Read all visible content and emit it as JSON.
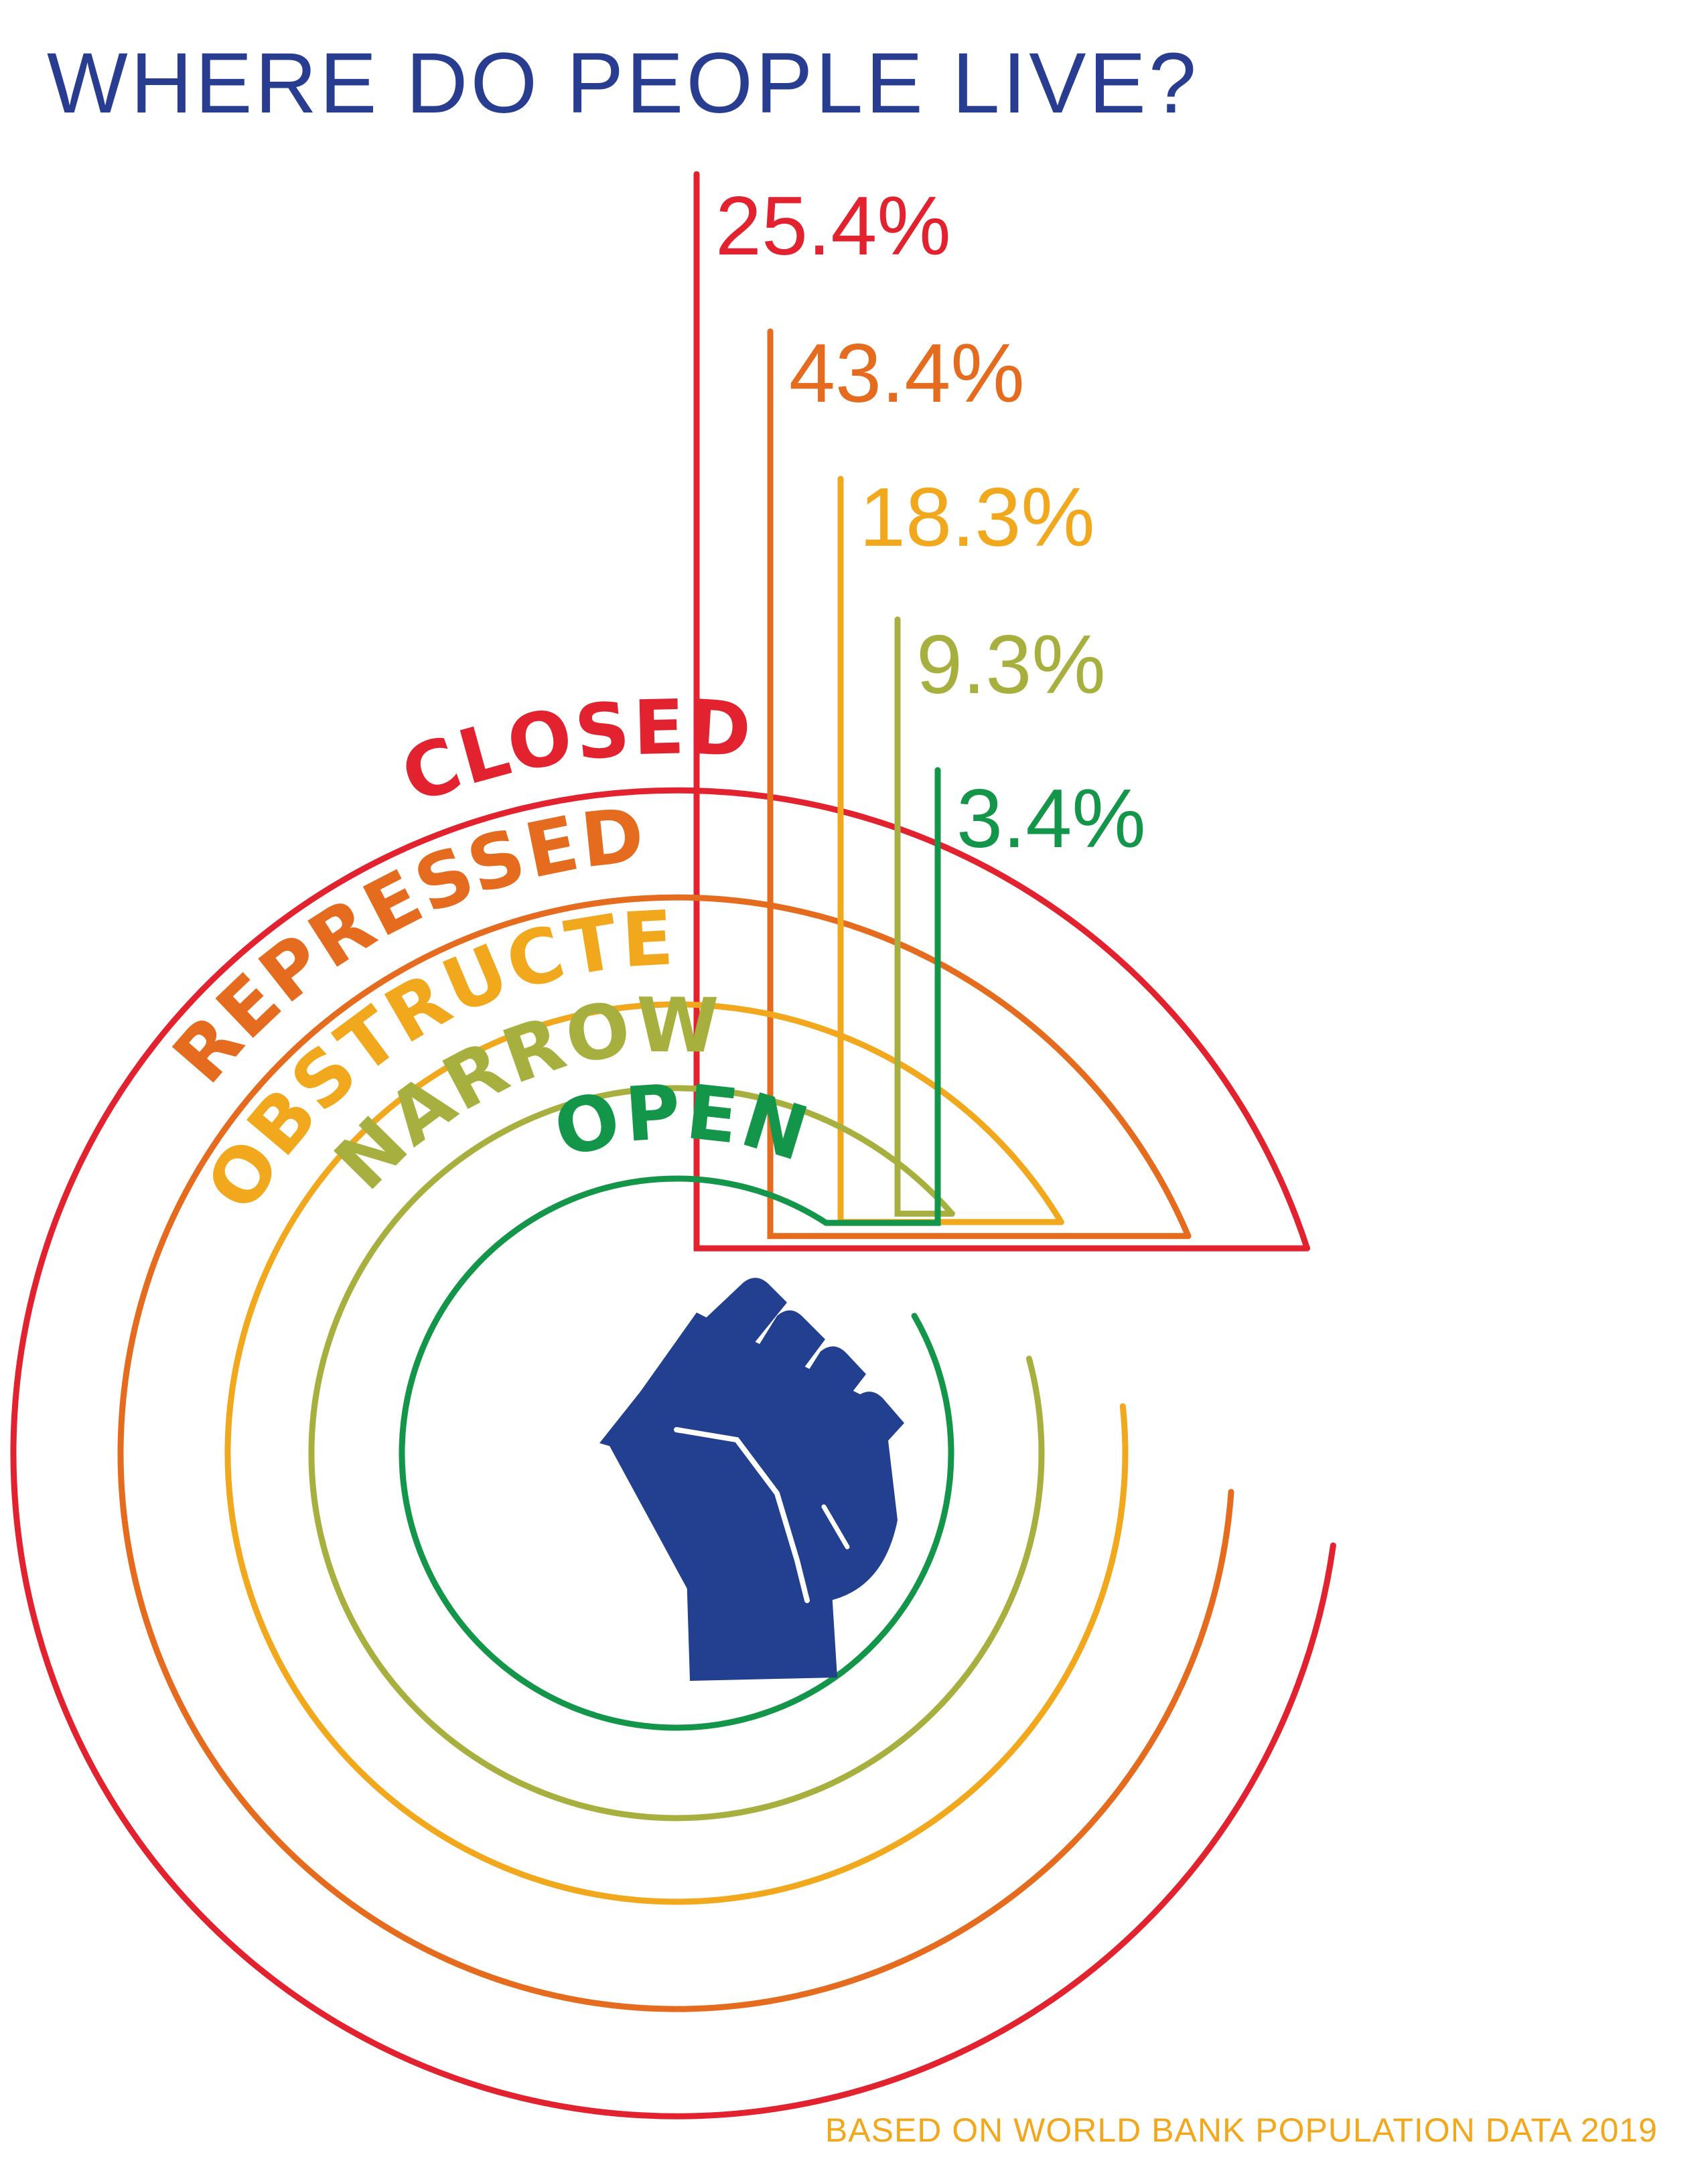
{
  "chart_data": {
    "type": "radial-bar",
    "title": "WHERE DO PEOPLE LIVE?",
    "source": "BASED ON WORLD BANK POPULATION DATA 2019",
    "unit": "%",
    "categories": [
      "CLOSED",
      "REPRESSED",
      "OBSTRUCTED",
      "NARROWED",
      "OPEN"
    ],
    "values": [
      25.4,
      43.4,
      18.3,
      9.3,
      3.4
    ],
    "value_labels": [
      "25.4%",
      "43.4%",
      "18.3%",
      "9.3%",
      "3.4%"
    ],
    "colors": [
      "#e2232f",
      "#e56b1f",
      "#f2a81d",
      "#a7b03f",
      "#14964a"
    ],
    "title_color": "#283d8f",
    "source_color": "#f2a81d",
    "center_icon": "raised-fist-icon",
    "icon_color": "#22408f",
    "legend": "none",
    "grid": false
  }
}
